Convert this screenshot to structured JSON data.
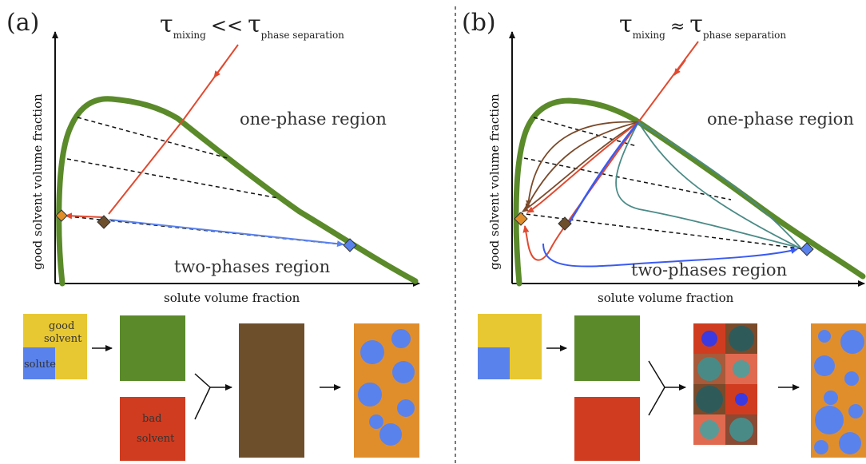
{
  "panel_a": {
    "label": "(a)",
    "tau_symbol": "τ",
    "tau_left_sub": "mixing",
    "tau_relation": "<<",
    "tau_right_sub": "phase separation",
    "y_axis_label": "good solvent volume fraction",
    "x_axis_label": "solute volume fraction",
    "upper_region_label": "one-phase region",
    "lower_region_label": "two-phases region",
    "box_good_solvent": [
      "good",
      "solvent"
    ],
    "box_solute": "solute",
    "box_bad_solvent": [
      "bad",
      "solvent"
    ]
  },
  "panel_b": {
    "label": "(b)",
    "tau_symbol": "τ",
    "tau_left_sub": "mixing",
    "tau_relation": "≈",
    "tau_right_sub": "phase separation",
    "y_axis_label": "good solvent volume fraction",
    "x_axis_label": "solute volume fraction",
    "upper_region_label": "one-phase region",
    "lower_region_label": "two-phases region"
  },
  "colors": {
    "binodal": "#5a8a2a",
    "good_solvent": "#e8c832",
    "solute": "#5a82ec",
    "bad_solvent": "#d03c20",
    "mixture": "#6e4f2c",
    "final_phase": "#e08e2c",
    "droplet": "#5a82ec",
    "red_path": "#e04a30",
    "blue_path": "#3a5af0",
    "teal_path": "#4a8a86",
    "brown_path": "#7a4a2a",
    "orange_diamond": "#e08e2c",
    "brown_diamond": "#6e4f2c",
    "blue_diamond": "#5a82ec"
  }
}
